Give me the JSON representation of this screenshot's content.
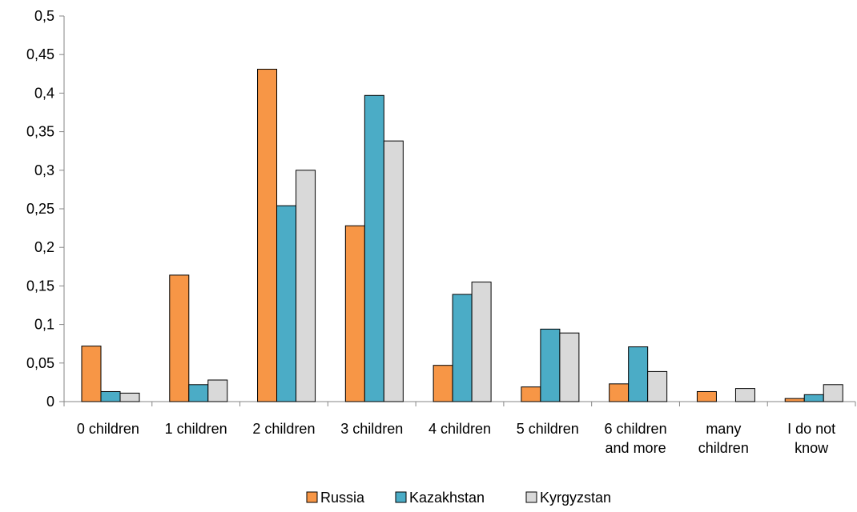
{
  "chart_data": {
    "type": "bar",
    "title": "",
    "xlabel": "",
    "ylabel": "",
    "ylim": [
      0,
      0.5
    ],
    "yticks": [
      {
        "value": 0,
        "label": "0"
      },
      {
        "value": 0.05,
        "label": "0,05"
      },
      {
        "value": 0.1,
        "label": "0,1"
      },
      {
        "value": 0.15,
        "label": "0,15"
      },
      {
        "value": 0.2,
        "label": "0,2"
      },
      {
        "value": 0.25,
        "label": "0,25"
      },
      {
        "value": 0.3,
        "label": "0,3"
      },
      {
        "value": 0.35,
        "label": "0,35"
      },
      {
        "value": 0.4,
        "label": "0,4"
      },
      {
        "value": 0.45,
        "label": "0,45"
      },
      {
        "value": 0.5,
        "label": "0,5"
      }
    ],
    "categories": [
      [
        "0 children"
      ],
      [
        "1 children"
      ],
      [
        "2 children"
      ],
      [
        "3 children"
      ],
      [
        "4 children"
      ],
      [
        "5 children"
      ],
      [
        "6 children",
        "and more"
      ],
      [
        "many",
        "children"
      ],
      [
        "I do not",
        "know"
      ]
    ],
    "series": [
      {
        "name": "Russia",
        "color": "#F79646",
        "values": [
          0.072,
          0.164,
          0.431,
          0.228,
          0.047,
          0.019,
          0.023,
          0.013,
          0.004
        ]
      },
      {
        "name": "Kazakhstan",
        "color": "#4BACC6",
        "values": [
          0.013,
          0.022,
          0.254,
          0.397,
          0.139,
          0.094,
          0.071,
          0.0,
          0.009
        ]
      },
      {
        "name": "Kyrgyzstan",
        "color": "#D9D9D9",
        "values": [
          0.011,
          0.028,
          0.3,
          0.338,
          0.155,
          0.089,
          0.039,
          0.017,
          0.022
        ]
      }
    ],
    "legend_position": "bottom",
    "grid": false,
    "bar_outline_color": "#000000",
    "axis_color": "#868686"
  }
}
